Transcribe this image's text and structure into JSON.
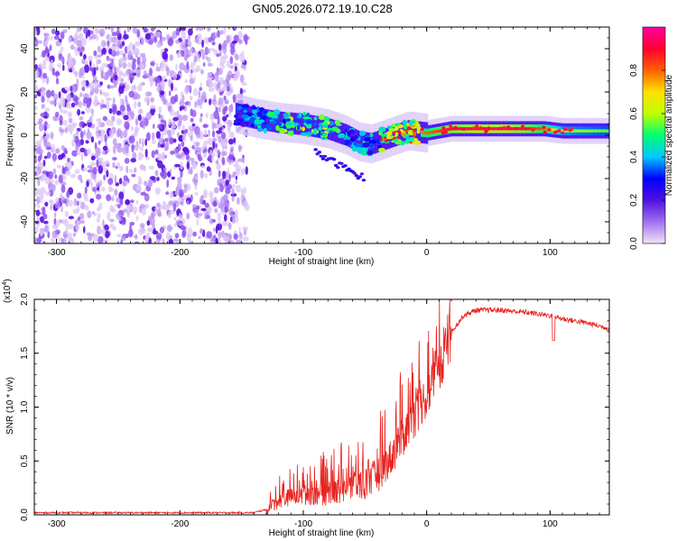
{
  "title": "GN05.2026.072.19.10.C28",
  "chart_data": [
    {
      "type": "heatmap",
      "name": "spectrogram",
      "xlabel": "Height of straight line (km)",
      "ylabel": "Frequency (Hz)",
      "xlim": [
        -318,
        148
      ],
      "ylim": [
        -50,
        50
      ],
      "xticks": [
        -300,
        -200,
        -100,
        0,
        100
      ],
      "xtick_labels": [
        "-300",
        "-200",
        "-100",
        "0",
        "100"
      ],
      "yticks": [
        -40,
        -20,
        0,
        20,
        40
      ],
      "ytick_labels": [
        "-40",
        "-20",
        "0",
        "20",
        "40"
      ],
      "colorbar": {
        "label": "Normalized spectral amplitude",
        "range": [
          0,
          1
        ],
        "ticks": [
          0.0,
          0.2,
          0.4,
          0.6,
          0.8
        ],
        "tick_labels": [
          "0.0",
          "0.2",
          "0.4",
          "0.6",
          "0.8"
        ],
        "colormap": [
          "#f2e4f6",
          "#a070f0",
          "#5010e0",
          "#0000ff",
          "#00c8ff",
          "#00ff70",
          "#c0ff00",
          "#ffe000",
          "#ff6000",
          "#ff0030",
          "#ff00a0"
        ]
      },
      "noise_region_x": [
        -318,
        -145
      ],
      "signal_track": {
        "x": [
          -155,
          -140,
          -120,
          -100,
          -80,
          -65,
          -55,
          -45,
          -30,
          -15,
          0,
          20,
          40,
          60,
          80,
          95,
          110,
          148
        ],
        "freq": [
          10,
          8,
          6,
          5,
          3,
          0,
          -3,
          -4,
          -1,
          2,
          1,
          3,
          3,
          3,
          3,
          3,
          2,
          2
        ],
        "amplitude": [
          0.3,
          0.4,
          0.5,
          0.6,
          0.55,
          0.45,
          0.4,
          0.45,
          0.6,
          0.75,
          0.8,
          0.9,
          0.95,
          0.95,
          0.9,
          0.8,
          0.6,
          0.55
        ]
      }
    },
    {
      "type": "line",
      "name": "snr",
      "xlabel": "Height of straight line (km)",
      "ylabel": "SNR (10 * v/v)",
      "scale_label": "(x10",
      "scale_exponent": "4",
      "color": "#e8221e",
      "xlim": [
        -318,
        148
      ],
      "ylim": [
        0,
        2.0
      ],
      "xticks": [
        -300,
        -200,
        -100,
        0,
        100
      ],
      "xtick_labels": [
        "-300",
        "-200",
        "-100",
        "0",
        "100"
      ],
      "yticks": [
        0.0,
        0.5,
        1.0,
        1.5,
        2.0
      ],
      "ytick_labels": [
        "0.0",
        "0.5",
        "1.0",
        "1.5",
        "2.0"
      ],
      "series": [
        {
          "name": "SNR",
          "x": [
            -318,
            -200,
            -140,
            -130,
            -120,
            -110,
            -100,
            -90,
            -80,
            -70,
            -60,
            -50,
            -40,
            -30,
            -20,
            -10,
            0,
            10,
            20,
            30,
            40,
            60,
            80,
            100,
            110,
            120,
            130,
            148
          ],
          "y": [
            0.02,
            0.02,
            0.02,
            0.05,
            0.15,
            0.18,
            0.2,
            0.22,
            0.22,
            0.25,
            0.28,
            0.32,
            0.4,
            0.55,
            0.75,
            0.95,
            1.15,
            1.4,
            1.7,
            1.85,
            1.9,
            1.9,
            1.88,
            1.85,
            1.82,
            1.8,
            1.78,
            1.73
          ]
        }
      ]
    }
  ]
}
